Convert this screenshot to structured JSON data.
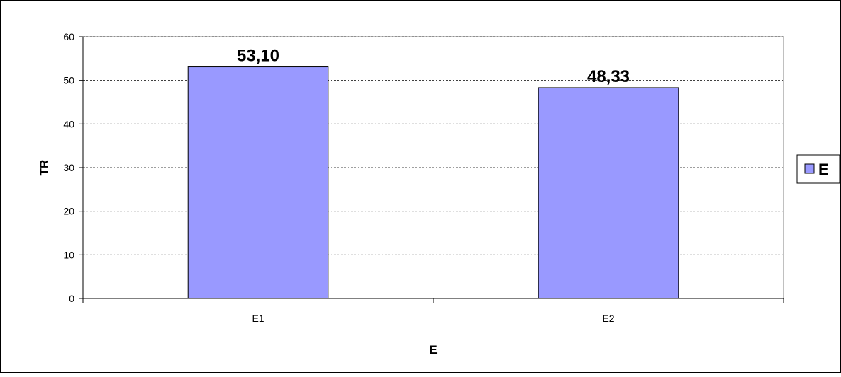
{
  "chart_data": {
    "type": "bar",
    "categories": [
      "E1",
      "E2"
    ],
    "series": [
      {
        "name": "E",
        "values": [
          53.1,
          48.33
        ],
        "color": "#9999ff"
      }
    ],
    "data_labels": [
      "53,10",
      "48,33"
    ],
    "xlabel": "E",
    "ylabel": "TR",
    "ylim": [
      0,
      60
    ],
    "yticks": [
      0,
      10,
      20,
      30,
      40,
      50,
      60
    ],
    "ytick_labels": [
      "0",
      "10",
      "20",
      "30",
      "40",
      "50",
      "60"
    ],
    "grid": true,
    "legend": {
      "position": "right",
      "entries": [
        "E"
      ]
    },
    "colors": {
      "bar": "#9999ff",
      "plot_background": "#ffffff",
      "border": "#000000",
      "grid": "#000000"
    }
  }
}
